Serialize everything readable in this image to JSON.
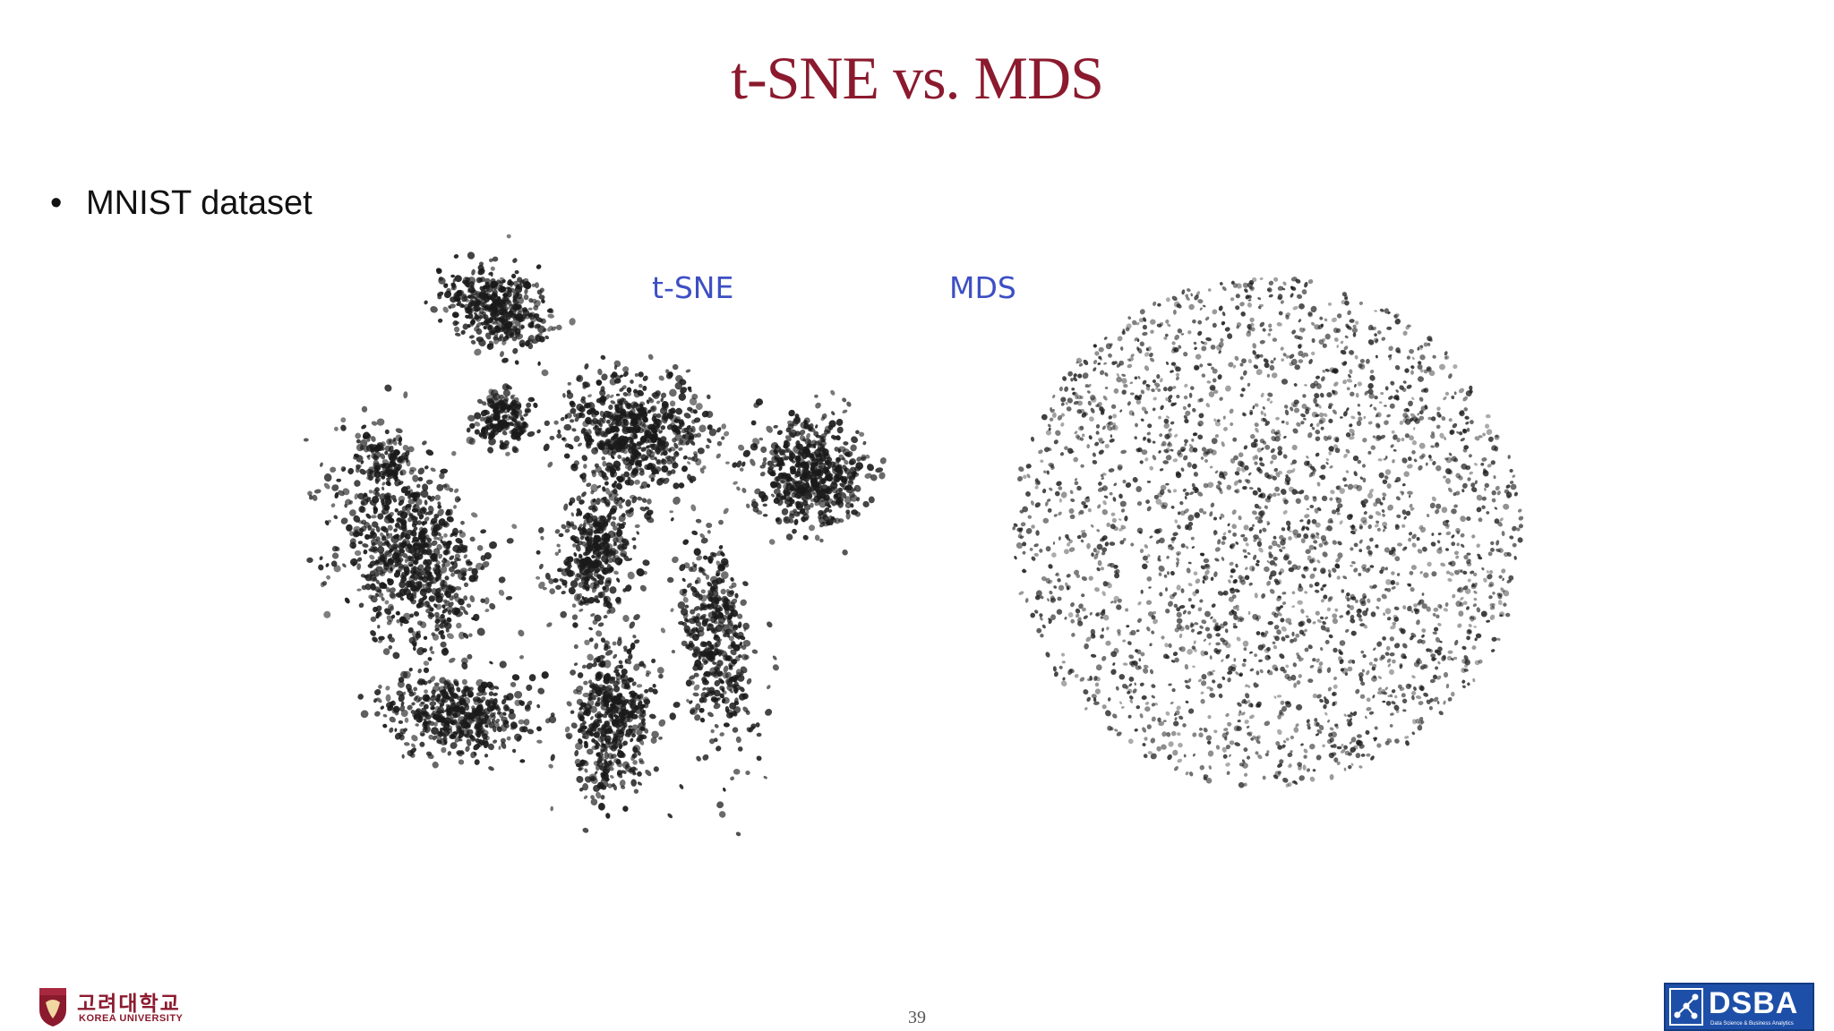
{
  "slide": {
    "title": "t-SNE vs. MDS",
    "bullet": "MNIST dataset",
    "page_number": "39"
  },
  "figures": {
    "tsne_label": "t-SNE",
    "mds_label": "MDS",
    "label_color": "#3d4fc4",
    "point_color": "#1a1a1a"
  },
  "footer": {
    "university_korean": "고려대학교",
    "university_english": "KOREA UNIVERSITY",
    "lab_name": "DSBA",
    "lab_subtitle": "Data Science & Business Analytics"
  },
  "colors": {
    "title": "#8b1a2e",
    "ku_brand": "#8b1a2e",
    "dsba_brand": "#1e4fa8"
  }
}
